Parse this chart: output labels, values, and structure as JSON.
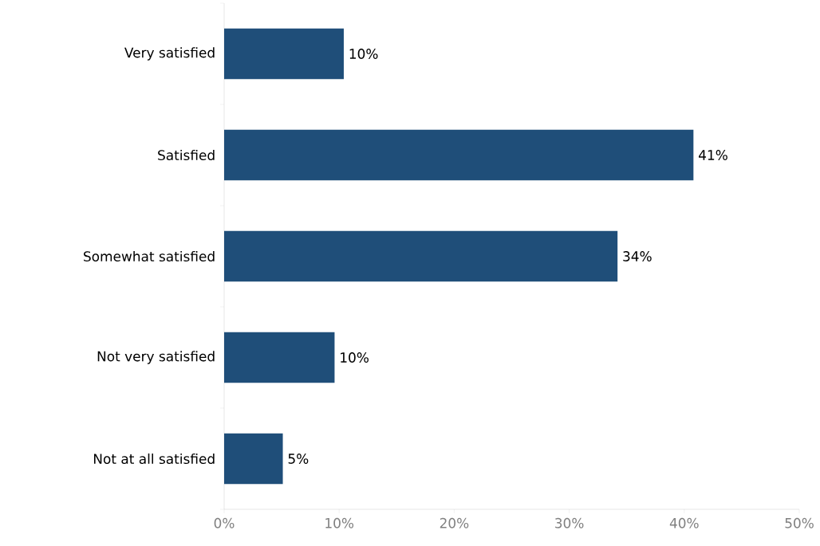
{
  "chart_data": {
    "type": "bar",
    "orientation": "horizontal",
    "categories": [
      "Very satisfied",
      "Satisfied",
      "Somewhat satisfied",
      "Not very satisfied",
      "Not at all satisfied"
    ],
    "values": [
      10.4,
      40.8,
      34.2,
      9.6,
      5.1
    ],
    "value_labels": [
      "10%",
      "41%",
      "34%",
      "10%",
      "5%"
    ],
    "color": "#1f4e79",
    "xlim": [
      0,
      50
    ],
    "xticks": [
      {
        "value": 0,
        "label": "0%"
      },
      {
        "value": 10,
        "label": "10%"
      },
      {
        "value": 20,
        "label": "20%"
      },
      {
        "value": 30,
        "label": "30%"
      },
      {
        "value": 40,
        "label": "40%"
      },
      {
        "value": 50,
        "label": "50%"
      }
    ]
  }
}
